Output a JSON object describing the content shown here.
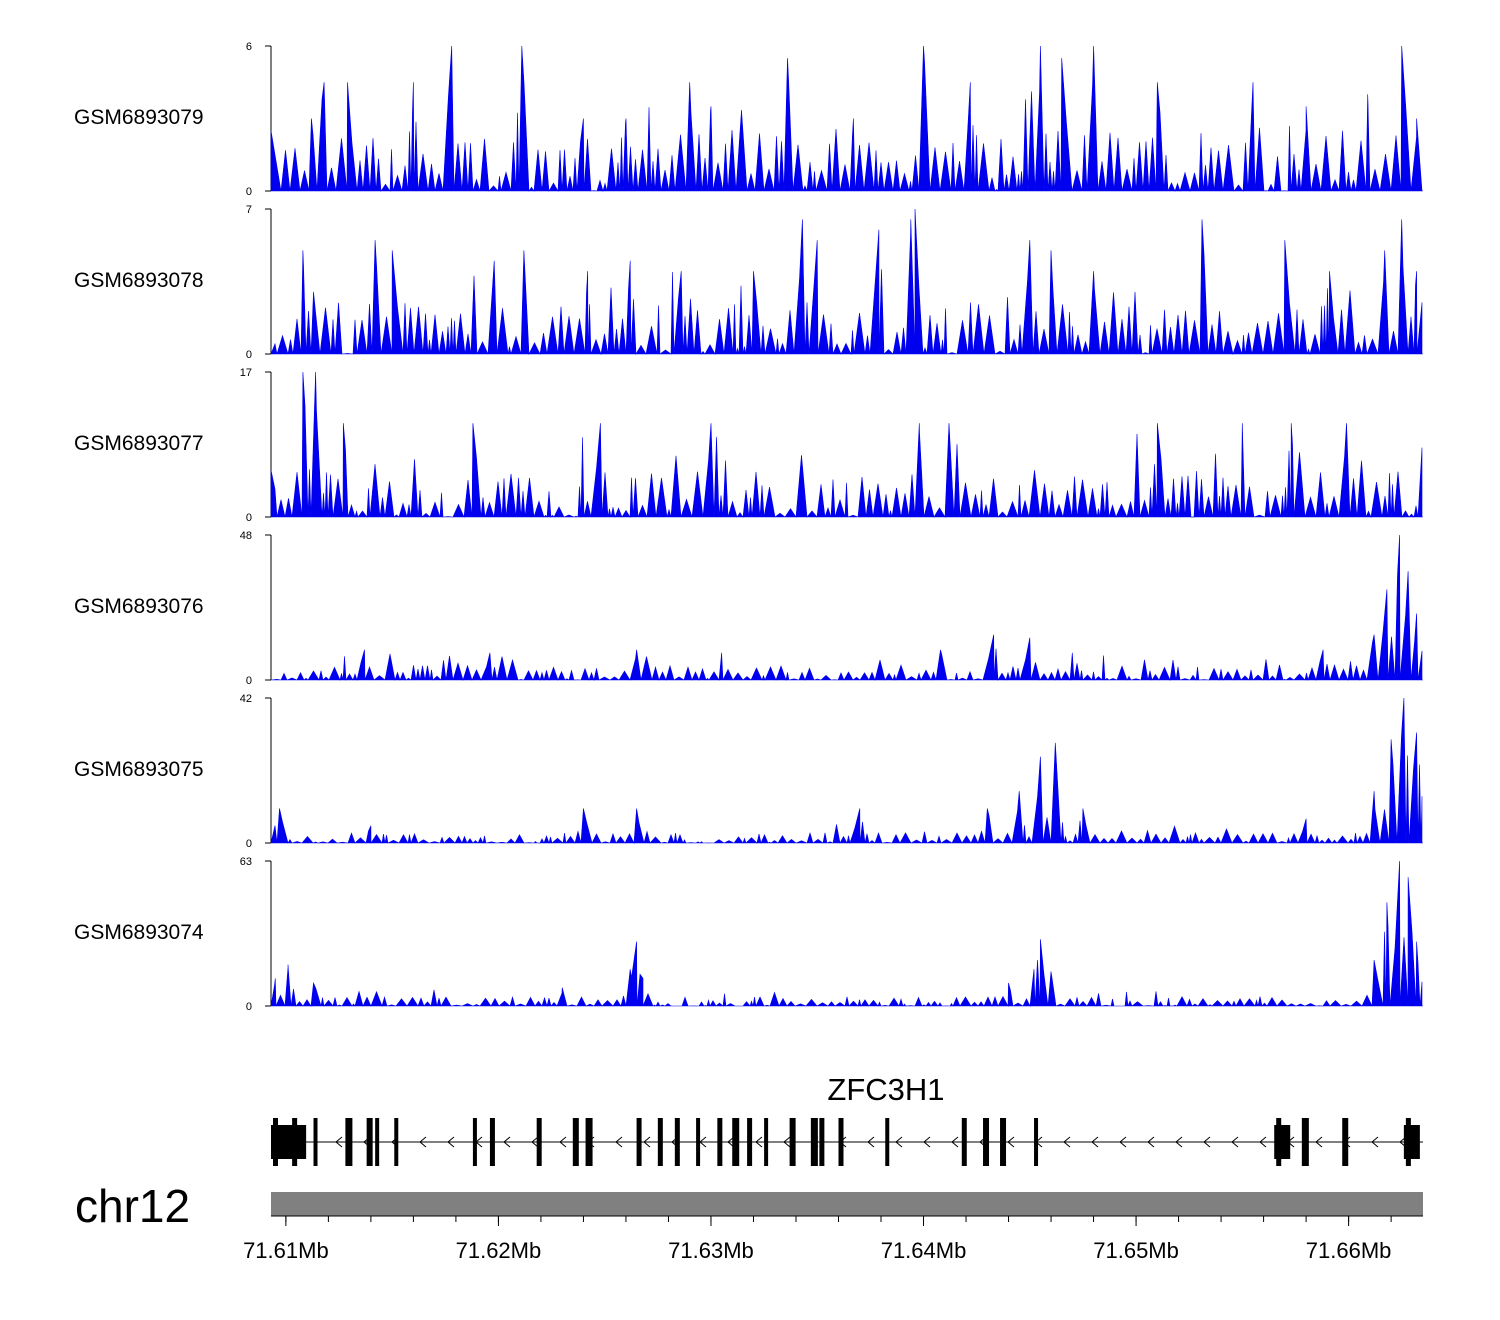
{
  "chart_data": {
    "type": "area",
    "title": "",
    "colors": {
      "signal": "#0000ee",
      "axis": "#000000",
      "gene": "#000000",
      "ideogram": "#808080"
    },
    "x": {
      "unit": "Mb",
      "range": [
        71.6093,
        71.6635
      ],
      "ticks": [
        71.61,
        71.62,
        71.63,
        71.64,
        71.65,
        71.66
      ],
      "tick_labels": [
        "71.61Mb",
        "71.62Mb",
        "71.63Mb",
        "71.64Mb",
        "71.65Mb",
        "71.66Mb"
      ]
    },
    "series": [
      {
        "name": "GSM6893079",
        "ymax": 6,
        "ylim": [
          0,
          6
        ],
        "tick_labels": [
          "6",
          "0"
        ],
        "peaks": [
          [
            71.6093,
            2.5
          ],
          [
            71.6112,
            3.0
          ],
          [
            71.6118,
            4.5
          ],
          [
            71.6129,
            4.5
          ],
          [
            71.616,
            4.5
          ],
          [
            71.6178,
            6.0
          ],
          [
            71.6211,
            6.0
          ],
          [
            71.624,
            3.0
          ],
          [
            71.626,
            3.0
          ],
          [
            71.629,
            4.5
          ],
          [
            71.63,
            3.5
          ],
          [
            71.6336,
            5.5
          ],
          [
            71.6367,
            3.0
          ],
          [
            71.64,
            6.0
          ],
          [
            71.6422,
            4.5
          ],
          [
            71.6455,
            6.0
          ],
          [
            71.6465,
            5.5
          ],
          [
            71.648,
            6.0
          ],
          [
            71.651,
            4.5
          ],
          [
            71.6555,
            4.5
          ],
          [
            71.658,
            3.5
          ],
          [
            71.6609,
            4.0
          ],
          [
            71.6625,
            6.0
          ],
          [
            71.6632,
            3.0
          ]
        ],
        "baseline": [
          0,
          2.5
        ]
      },
      {
        "name": "GSM6893078",
        "ymax": 7,
        "ylim": [
          0,
          7
        ],
        "tick_labels": [
          "7",
          "0"
        ],
        "peaks": [
          [
            71.6108,
            5.0
          ],
          [
            71.6113,
            3.0
          ],
          [
            71.6142,
            5.5
          ],
          [
            71.615,
            5.0
          ],
          [
            71.6198,
            4.5
          ],
          [
            71.6212,
            5.0
          ],
          [
            71.6242,
            4.0
          ],
          [
            71.6262,
            4.5
          ],
          [
            71.6286,
            4.0
          ],
          [
            71.632,
            4.0
          ],
          [
            71.6343,
            6.5
          ],
          [
            71.635,
            5.5
          ],
          [
            71.6379,
            6.0
          ],
          [
            71.6394,
            6.5
          ],
          [
            71.6396,
            7.0
          ],
          [
            71.645,
            5.5
          ],
          [
            71.646,
            5.0
          ],
          [
            71.648,
            4.0
          ],
          [
            71.6531,
            6.5
          ],
          [
            71.657,
            5.5
          ],
          [
            71.6591,
            4.0
          ],
          [
            71.6617,
            5.0
          ],
          [
            71.6625,
            6.5
          ],
          [
            71.6632,
            4.0
          ]
        ],
        "baseline": [
          0,
          2.5
        ]
      },
      {
        "name": "GSM6893077",
        "ymax": 17,
        "ylim": [
          0,
          17
        ],
        "tick_labels": [
          "17",
          "0"
        ],
        "peaks": [
          [
            71.6093,
            5.5
          ],
          [
            71.6108,
            17.0
          ],
          [
            71.6114,
            17.0
          ],
          [
            71.6127,
            11.0
          ],
          [
            71.6188,
            11.0
          ],
          [
            71.6248,
            11.0
          ],
          [
            71.63,
            11.0
          ],
          [
            71.6398,
            11.0
          ],
          [
            71.6412,
            11.0
          ],
          [
            71.651,
            11.0
          ],
          [
            71.655,
            11.0
          ],
          [
            71.6573,
            11.0
          ],
          [
            71.6599,
            11.0
          ]
        ],
        "baseline": [
          0,
          5.5
        ]
      },
      {
        "name": "GSM6893076",
        "ymax": 48,
        "ylim": [
          0,
          48
        ],
        "tick_labels": [
          "48",
          "0"
        ],
        "peaks": [
          [
            71.6137,
            10.0
          ],
          [
            71.6196,
            9.0
          ],
          [
            71.6265,
            10.0
          ],
          [
            71.6305,
            9.0
          ],
          [
            71.6408,
            10.0
          ],
          [
            71.6433,
            15.0
          ],
          [
            71.645,
            14.0
          ],
          [
            71.647,
            9.0
          ],
          [
            71.6588,
            10.0
          ],
          [
            71.6612,
            15.0
          ],
          [
            71.6618,
            30.0
          ],
          [
            71.6624,
            48.0
          ],
          [
            71.6628,
            36.0
          ],
          [
            71.6632,
            22.0
          ]
        ],
        "baseline": [
          0,
          5.0
        ]
      },
      {
        "name": "GSM6893075",
        "ymax": 42,
        "ylim": [
          0,
          42
        ],
        "tick_labels": [
          "42",
          "0"
        ],
        "peaks": [
          [
            71.6097,
            10.0
          ],
          [
            71.614,
            5.0
          ],
          [
            71.624,
            10.0
          ],
          [
            71.6265,
            10.0
          ],
          [
            71.637,
            10.0
          ],
          [
            71.643,
            10.0
          ],
          [
            71.6445,
            15.0
          ],
          [
            71.6455,
            25.0
          ],
          [
            71.6462,
            29.0
          ],
          [
            71.6475,
            10.0
          ],
          [
            71.658,
            7.0
          ],
          [
            71.6612,
            15.0
          ],
          [
            71.662,
            30.0
          ],
          [
            71.6626,
            42.0
          ],
          [
            71.6632,
            32.0
          ]
        ],
        "baseline": [
          0,
          3.0
        ]
      },
      {
        "name": "GSM6893074",
        "ymax": 63,
        "ylim": [
          0,
          63
        ],
        "tick_labels": [
          "63",
          "0"
        ],
        "peaks": [
          [
            71.6095,
            12.0
          ],
          [
            71.6101,
            18.0
          ],
          [
            71.6113,
            10.0
          ],
          [
            71.623,
            8.0
          ],
          [
            71.6262,
            16.0
          ],
          [
            71.6265,
            28.0
          ],
          [
            71.6268,
            12.0
          ],
          [
            71.644,
            10.0
          ],
          [
            71.6452,
            16.0
          ],
          [
            71.6455,
            29.0
          ],
          [
            71.646,
            15.0
          ],
          [
            71.6612,
            20.0
          ],
          [
            71.6618,
            45.0
          ],
          [
            71.6624,
            63.0
          ],
          [
            71.6628,
            56.0
          ],
          [
            71.6632,
            28.0
          ]
        ],
        "baseline": [
          0,
          4.0
        ]
      }
    ],
    "gene": {
      "name": "ZFC3H1",
      "chromosome": "chr12",
      "strand": "-",
      "exons_mb": [
        71.6093,
        71.6102,
        71.6113,
        71.6128,
        71.6138,
        71.6142,
        71.6151,
        71.6188,
        71.6196,
        71.6218,
        71.6235,
        71.6241,
        71.6265,
        71.6275,
        71.6283,
        71.6293,
        71.6303,
        71.631,
        71.6317,
        71.6325,
        71.6337,
        71.6347,
        71.6351,
        71.636,
        71.6382,
        71.6418,
        71.6428,
        71.6436,
        71.6452,
        71.6565,
        71.6578,
        71.6597,
        71.6626
      ]
    }
  }
}
